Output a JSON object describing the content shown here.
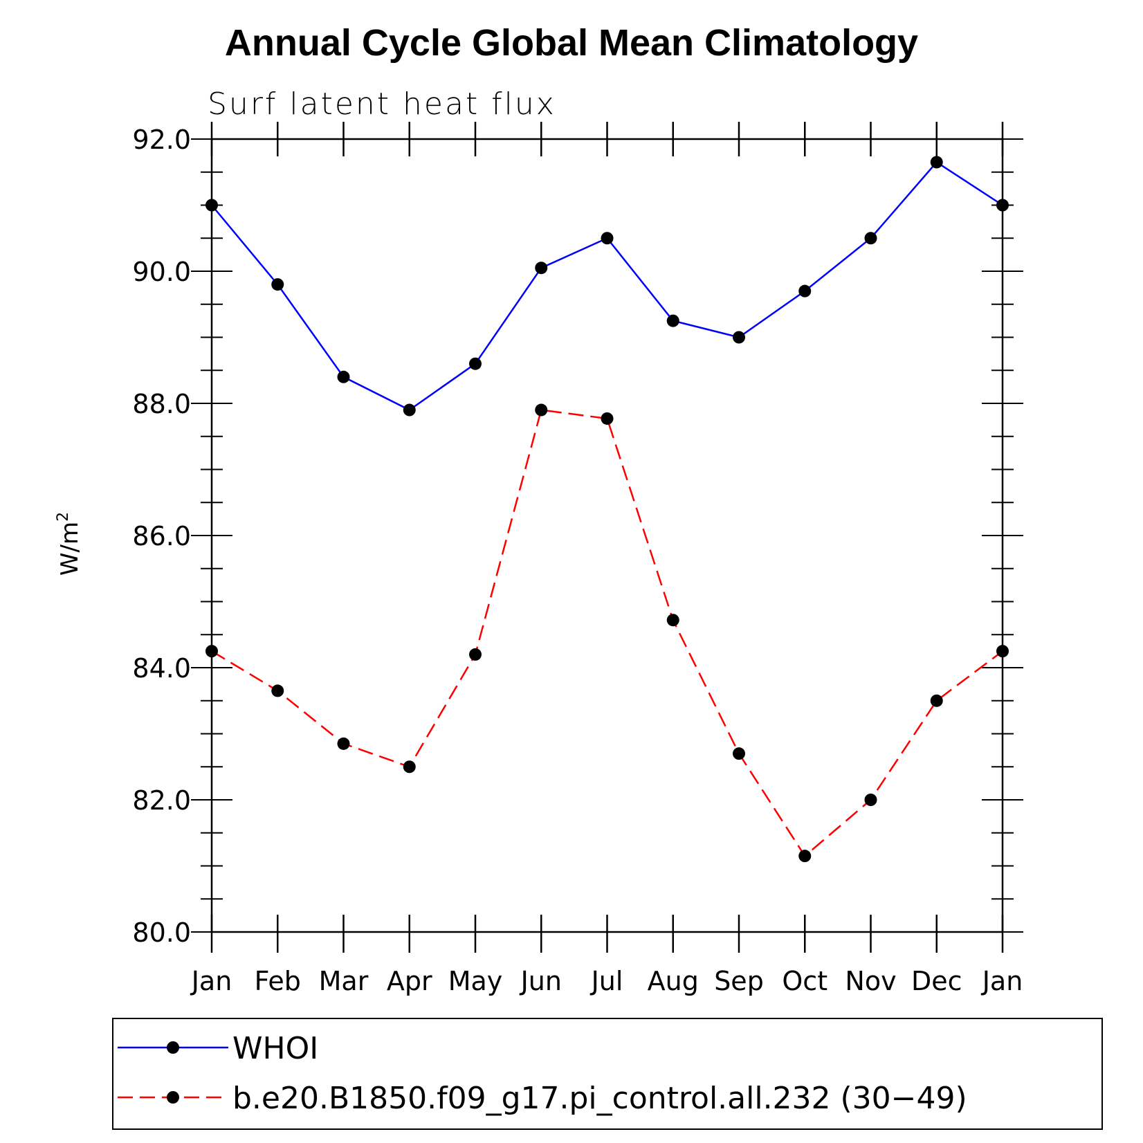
{
  "chart_data": {
    "type": "line",
    "title": "Annual Cycle Global Mean Climatology",
    "subtitle": "Surf latent heat flux",
    "ylabel": "W/m",
    "ylabel_sup": "2",
    "xlabel": "",
    "ylim": [
      80.0,
      92.0
    ],
    "yticks": [
      "80.0",
      "82.0",
      "84.0",
      "86.0",
      "88.0",
      "90.0",
      "92.0"
    ],
    "categories": [
      "Jan",
      "Feb",
      "Mar",
      "Apr",
      "May",
      "Jun",
      "Jul",
      "Aug",
      "Sep",
      "Oct",
      "Nov",
      "Dec",
      "Jan"
    ],
    "grid": false,
    "legend_position": "bottom",
    "series": [
      {
        "name": "WHOI",
        "color": "#0000ff",
        "dashed": false,
        "values": [
          91.0,
          89.8,
          88.4,
          87.9,
          88.6,
          90.05,
          90.5,
          89.25,
          89.0,
          89.7,
          90.5,
          91.65,
          91.0
        ]
      },
      {
        "name": "b.e20.B1850.f09_g17.pi_control.all.232 (30−49)",
        "color": "#ff0000",
        "dashed": true,
        "values": [
          84.25,
          83.65,
          82.85,
          82.5,
          84.2,
          87.9,
          87.77,
          84.72,
          82.7,
          81.15,
          82.0,
          83.5,
          84.25
        ]
      }
    ]
  }
}
